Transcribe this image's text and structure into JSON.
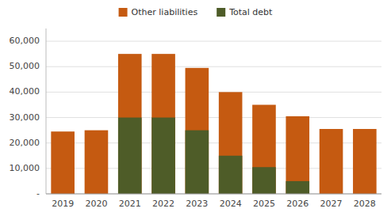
{
  "chart_data": {
    "type": "bar",
    "categories": [
      "2019",
      "2020",
      "2021",
      "2022",
      "2023",
      "2024",
      "2025",
      "2026",
      "2027",
      "2028"
    ],
    "series": [
      {
        "name": "Other liabilities",
        "color": "#C55A11",
        "values": [
          24500,
          25000,
          55000,
          55000,
          49500,
          40000,
          35000,
          30500,
          25500,
          25500
        ]
      },
      {
        "name": "Total debt",
        "color": "#4E5C28",
        "values": [
          0,
          0,
          30000,
          30000,
          25000,
          15000,
          10500,
          5000,
          0,
          0
        ]
      }
    ],
    "stacked": false,
    "ylim": [
      0,
      65000
    ],
    "yticks": [
      {
        "value": 0,
        "label": "-"
      },
      {
        "value": 10000,
        "label": "10,000"
      },
      {
        "value": 20000,
        "label": "20,000"
      },
      {
        "value": 30000,
        "label": "30,000"
      },
      {
        "value": 40000,
        "label": "40,000"
      },
      {
        "value": 50000,
        "label": "50,000"
      },
      {
        "value": 60000,
        "label": "60,000"
      }
    ],
    "grid": true,
    "legend": "top"
  }
}
